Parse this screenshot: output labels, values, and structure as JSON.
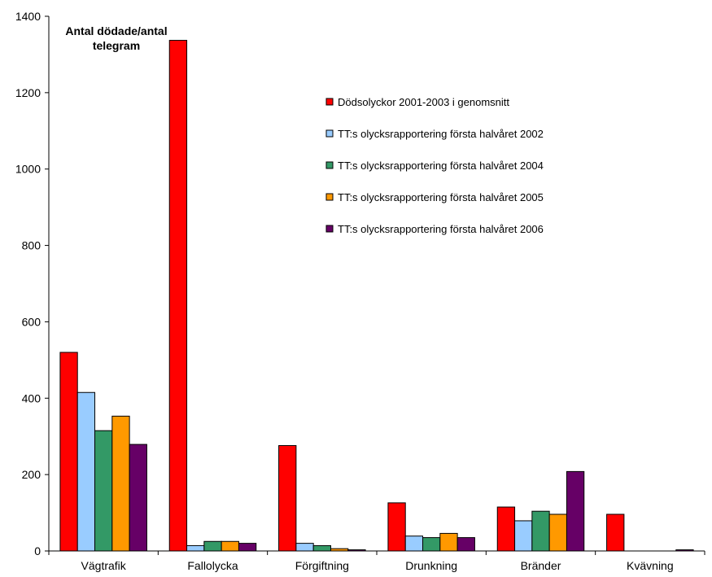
{
  "chart_data": {
    "type": "bar",
    "ylabel_lines": [
      "Antal dödade/antal",
      "telegram"
    ],
    "xlabel": "",
    "ylim": [
      0,
      1400
    ],
    "yticks": [
      0,
      200,
      400,
      600,
      800,
      1000,
      1200,
      1400
    ],
    "grid": false,
    "legend_position": "top-right (inside plot)",
    "categories": [
      "Vägtrafik",
      "Fallolycka",
      "Förgiftning",
      "Drunkning",
      "Bränder",
      "Kvävning"
    ],
    "series": [
      {
        "name": "Dödsolyckor 2001-2003 i genomsnitt",
        "color": "#FF0000",
        "values": [
          520,
          1337,
          276,
          126,
          115,
          96
        ]
      },
      {
        "name": "TT:s olycksrapportering första halvåret 2002",
        "color": "#99CCFF",
        "values": [
          415,
          14,
          20,
          39,
          79,
          0
        ]
      },
      {
        "name": "TT:s olycksrapportering första halvåret 2004",
        "color": "#339966",
        "values": [
          315,
          25,
          14,
          35,
          104,
          0
        ]
      },
      {
        "name": "TT:s olycksrapportering första halvåret 2005",
        "color": "#FF9900",
        "values": [
          353,
          25,
          6,
          46,
          96,
          0
        ]
      },
      {
        "name": "TT:s olycksrapportering första halvåret 2006",
        "color": "#660066",
        "values": [
          279,
          20,
          3,
          35,
          208,
          3
        ]
      }
    ]
  }
}
